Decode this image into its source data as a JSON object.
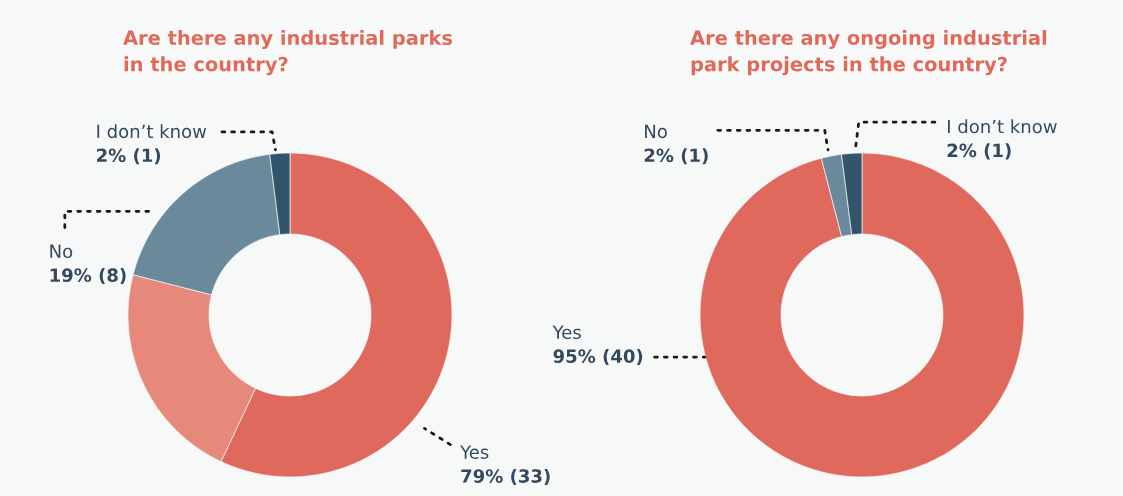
{
  "chart_data": [
    {
      "type": "donut",
      "title": "Are there any industrial parks\nin the country?",
      "categories": [
        "Yes",
        null,
        "No",
        "I don’t know"
      ],
      "values": [
        57,
        22,
        19,
        2
      ],
      "colors": [
        "#df695d",
        "#e6897b",
        "#6a899b",
        "#33556c"
      ],
      "value_labels": [
        null,
        null,
        "19% (8)",
        "2% (1)"
      ],
      "annotations": [
        "79% (33)"
      ]
    },
    {
      "type": "donut",
      "title": "Are there any ongoing industrial\npark projects in the country?",
      "categories": [
        "Yes",
        "No",
        "I don’t know"
      ],
      "values": [
        95,
        2,
        2
      ],
      "colors": [
        "#df695d",
        "#6a899b",
        "#33556c"
      ],
      "value_labels": [
        "95% (40)",
        "2% (1)",
        "2% (1)"
      ]
    }
  ]
}
